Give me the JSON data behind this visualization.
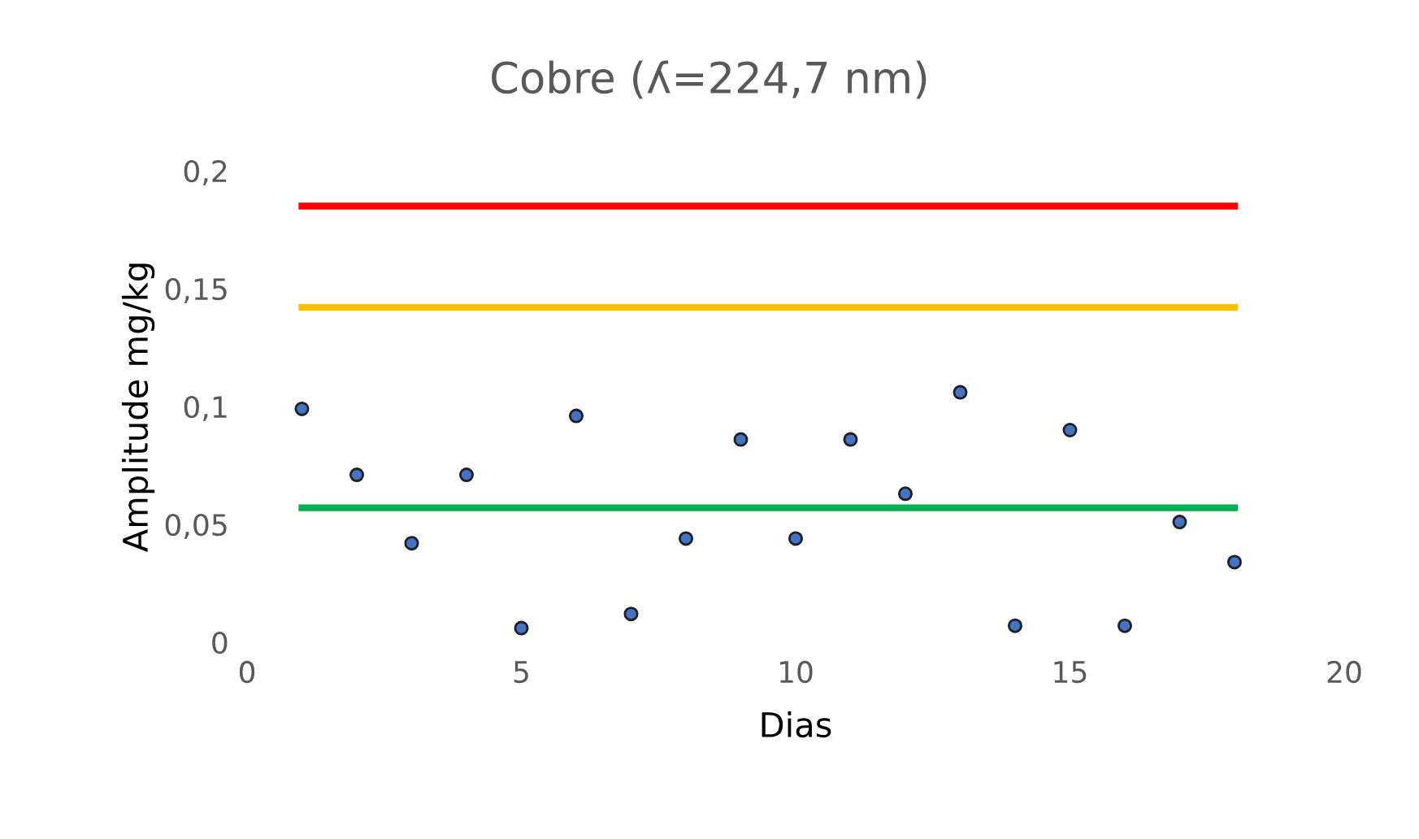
{
  "chart_data": {
    "type": "scatter",
    "title": "Cobre (ʎ=224,7 nm)",
    "xlabel": "Dias",
    "ylabel": "Amplitude mg/kg",
    "x": [
      1,
      2,
      3,
      4,
      5,
      6,
      7,
      8,
      9,
      10,
      11,
      12,
      13,
      14,
      15,
      16,
      17,
      18
    ],
    "series": [
      {
        "color": "#4472c4",
        "marker": "circle",
        "values": [
          0.099,
          0.071,
          0.042,
          0.071,
          0.006,
          0.096,
          0.012,
          0.044,
          0.086,
          0.044,
          0.086,
          0.063,
          0.106,
          0.007,
          0.09,
          0.007,
          0.051,
          0.034
        ]
      },
      {
        "type": "line",
        "marker": "none",
        "color": "#ff0000",
        "values": [
          0.185,
          0.185,
          0.185,
          0.185,
          0.185,
          0.185,
          0.185,
          0.185,
          0.185,
          0.185,
          0.185,
          0.185,
          0.185,
          0.185,
          0.185,
          0.185,
          0.185,
          0.185
        ]
      },
      {
        "type": "line",
        "marker": "none",
        "color": "#ffc000",
        "values": [
          0.142,
          0.142,
          0.142,
          0.142,
          0.142,
          0.142,
          0.142,
          0.142,
          0.142,
          0.142,
          0.142,
          0.142,
          0.142,
          0.142,
          0.142,
          0.142,
          0.142,
          0.142
        ]
      },
      {
        "type": "line",
        "marker": "none",
        "color": "#00b050",
        "values": [
          0.057,
          0.057,
          0.057,
          0.057,
          0.057,
          0.057,
          0.057,
          0.057,
          0.057,
          0.057,
          0.057,
          0.057,
          0.057,
          0.057,
          0.057,
          0.057,
          0.057,
          0.057
        ]
      }
    ],
    "xlim": [
      0,
      20
    ],
    "xticks": [
      0,
      5,
      10,
      15,
      20
    ],
    "ylim": [
      0,
      0.2
    ],
    "yticks": [
      0,
      {
        "value": 0.05,
        "label": "0,05"
      },
      {
        "value": 0.1,
        "label": "0,1"
      },
      {
        "value": 0.15,
        "label": "0,15"
      },
      {
        "value": 0.2,
        "label": "0,2"
      }
    ],
    "grid": false
  }
}
